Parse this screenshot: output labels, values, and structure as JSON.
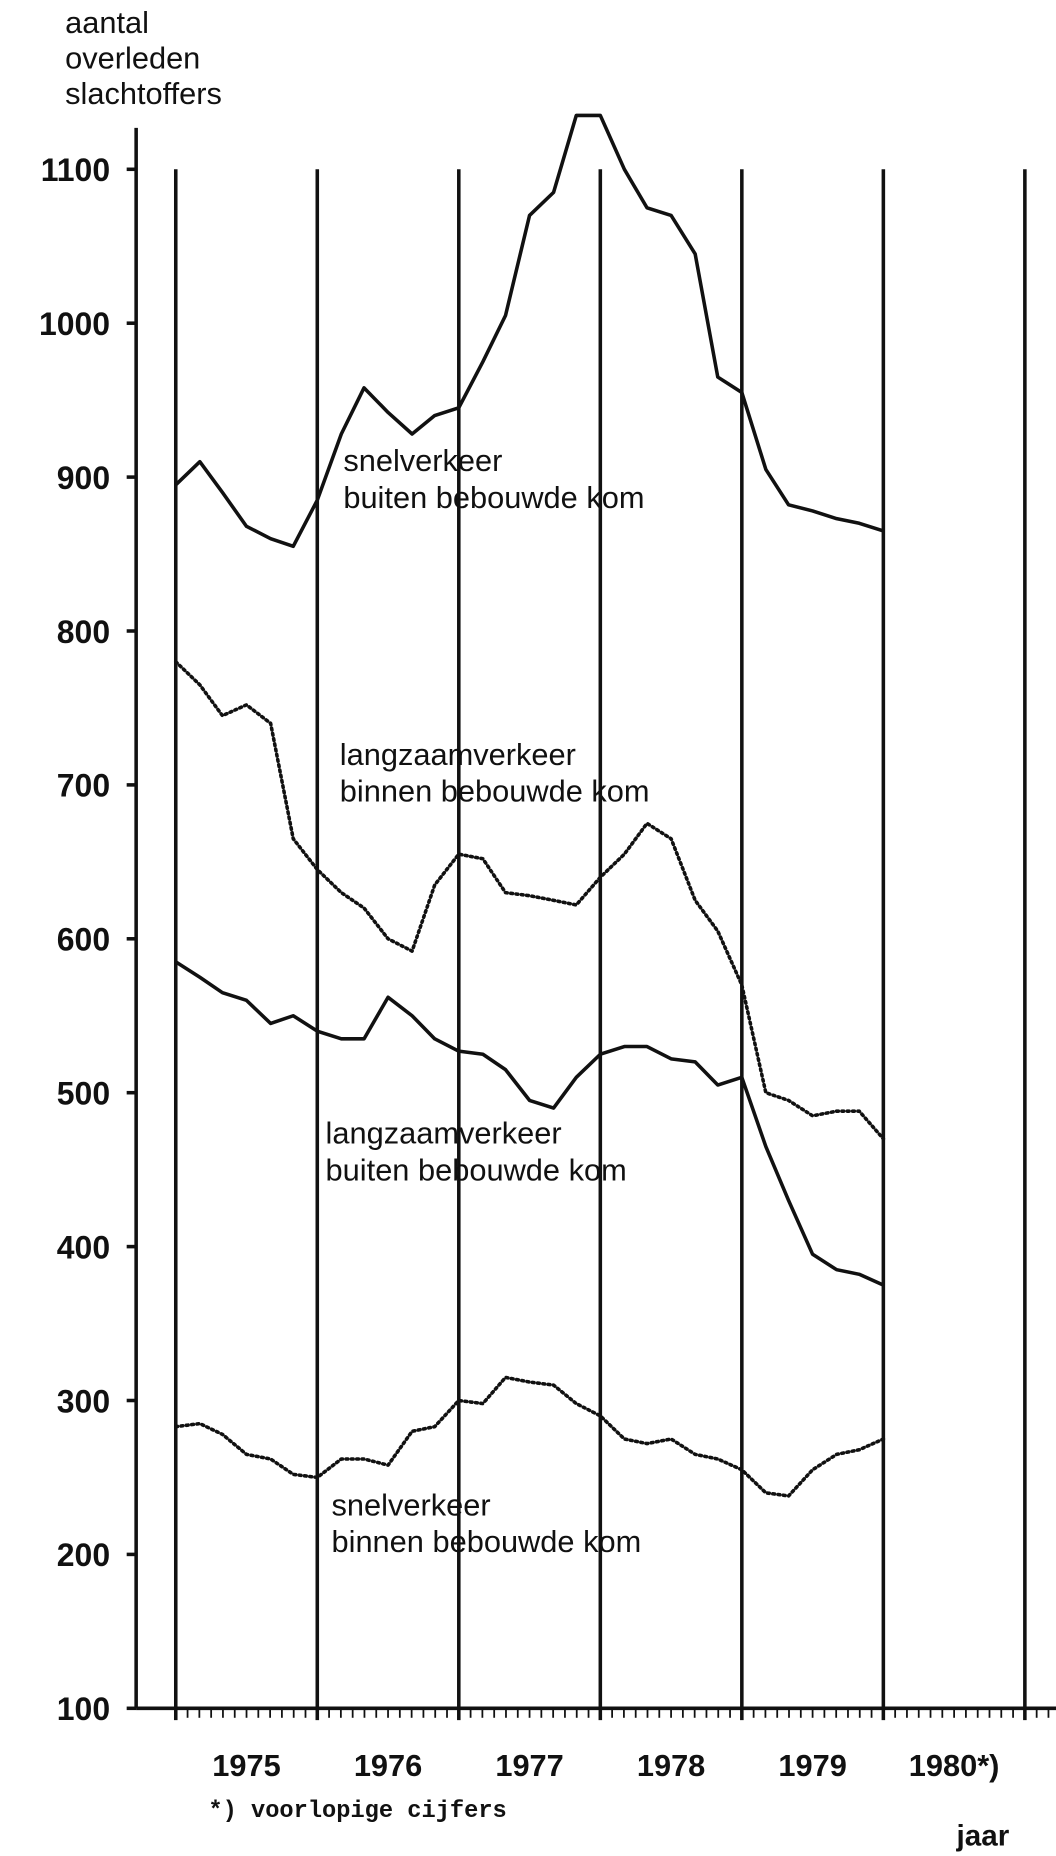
{
  "chart_data": {
    "type": "line",
    "y_label": "aantal\noverleden\nslachtoffers",
    "x_label": "jaar",
    "footnote": "*) voorlopige cijfers",
    "ylim": [
      100,
      1150
    ],
    "yticks": [
      100,
      200,
      300,
      400,
      500,
      600,
      700,
      800,
      900,
      1000,
      1100
    ],
    "xlim": [
      1974.72,
      1981.22
    ],
    "xticks": [
      1975,
      1976,
      1977,
      1978,
      1979,
      1980,
      1981
    ],
    "year_labels": [
      "1975",
      "1976",
      "1977",
      "1978",
      "1979",
      "1980*)"
    ],
    "x": [
      1975,
      1975.17,
      1975.33,
      1975.5,
      1975.67,
      1975.83,
      1976,
      1976.17,
      1976.33,
      1976.5,
      1976.67,
      1976.83,
      1977,
      1977.17,
      1977.33,
      1977.5,
      1977.67,
      1977.83,
      1978,
      1978.17,
      1978.33,
      1978.5,
      1978.67,
      1978.83,
      1979,
      1979.17,
      1979.33,
      1979.5,
      1979.67,
      1979.83,
      1980
    ],
    "series": [
      {
        "name": "snelverkeer\nbuiten bebouwde kom",
        "color": "#111111",
        "style": "solid",
        "values": [
          895,
          910,
          890,
          868,
          860,
          855,
          885,
          928,
          958,
          942,
          928,
          940,
          945,
          975,
          1005,
          1070,
          1085,
          1135,
          1135,
          1100,
          1075,
          1070,
          1045,
          965,
          955,
          905,
          882,
          878,
          873,
          870,
          865
        ]
      },
      {
        "name": "langzaamverkeer\nbinnen bebouwde kom",
        "color": "#111111",
        "style": "dotted",
        "values": [
          780,
          765,
          745,
          752,
          740,
          665,
          645,
          630,
          620,
          600,
          592,
          635,
          655,
          652,
          630,
          628,
          625,
          622,
          640,
          655,
          675,
          665,
          625,
          605,
          570,
          500,
          495,
          485,
          488,
          488,
          470
        ]
      },
      {
        "name": "langzaamverkeer\nbuiten bebouwde kom",
        "color": "#111111",
        "style": "solid",
        "values": [
          585,
          575,
          565,
          560,
          545,
          550,
          540,
          535,
          535,
          562,
          550,
          535,
          527,
          525,
          515,
          495,
          490,
          510,
          525,
          530,
          530,
          522,
          520,
          505,
          510,
          465,
          430,
          395,
          385,
          382,
          375
        ]
      },
      {
        "name": "snelverkeer\nbinnen bebouwde kom",
        "color": "#111111",
        "style": "dotted",
        "values": [
          283,
          285,
          278,
          265,
          262,
          252,
          250,
          262,
          262,
          258,
          280,
          283,
          300,
          298,
          315,
          312,
          310,
          298,
          290,
          275,
          272,
          275,
          265,
          262,
          255,
          240,
          238,
          255,
          265,
          268,
          275
        ]
      }
    ]
  }
}
